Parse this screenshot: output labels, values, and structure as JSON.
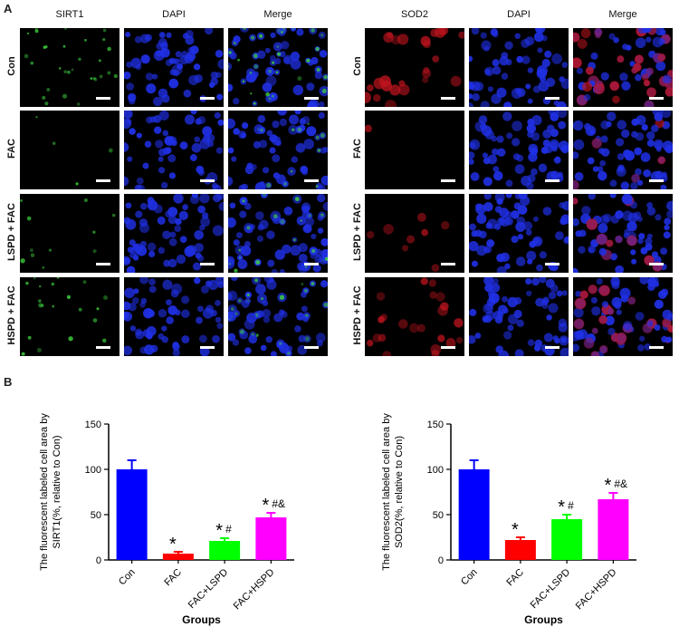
{
  "panel_a_label": "A",
  "panel_b_label": "B",
  "left_micro": {
    "columns": [
      "SIRT1",
      "DAPI",
      "Merge"
    ],
    "rows": [
      "Con",
      "FAC",
      "LSPD + FAC",
      "HSPD + FAC"
    ],
    "marker_color": "#3fd43f",
    "marker_level": [
      0.8,
      0.25,
      0.4,
      0.55
    ]
  },
  "right_micro": {
    "columns": [
      "SOD2",
      "DAPI",
      "Merge"
    ],
    "rows": [
      "Con",
      "FAC",
      "LSPD + FAC",
      "HSPD + FAC"
    ],
    "marker_color": "#c0141e",
    "marker_level": [
      0.9,
      0.1,
      0.35,
      0.6
    ]
  },
  "nucleus_color": "#2030e6",
  "chart_data": [
    {
      "type": "bar",
      "categories": [
        "Con",
        "FAC",
        "FAC+LSPD",
        "FAC+HSPD"
      ],
      "values": [
        100,
        7,
        21,
        47
      ],
      "errors": [
        10,
        2,
        3,
        5
      ],
      "colors": [
        "#0000ff",
        "#ff0000",
        "#00ff00",
        "#ff00ff"
      ],
      "annotations": [
        "",
        "*",
        "*#",
        "*#&"
      ],
      "ylabel_lines": [
        "The fluorescent labeled cell area by",
        "SIRT1(%, relative to Con)"
      ],
      "xlabel": "Groups",
      "ylim": [
        0,
        150
      ],
      "yticks": [
        0,
        50,
        100,
        150
      ]
    },
    {
      "type": "bar",
      "categories": [
        "Con",
        "FAC",
        "FAC+LSPD",
        "FAC+HSPD"
      ],
      "values": [
        100,
        22,
        45,
        67
      ],
      "errors": [
        10,
        3,
        5,
        7
      ],
      "colors": [
        "#0000ff",
        "#ff0000",
        "#00ff00",
        "#ff00ff"
      ],
      "annotations": [
        "",
        "*",
        "*#",
        "*#&"
      ],
      "ylabel_lines": [
        "The fluorescent labeled cell area by",
        "SOD2(%, relative to Con)"
      ],
      "xlabel": "Groups",
      "ylim": [
        0,
        150
      ],
      "yticks": [
        0,
        50,
        100,
        150
      ]
    }
  ]
}
